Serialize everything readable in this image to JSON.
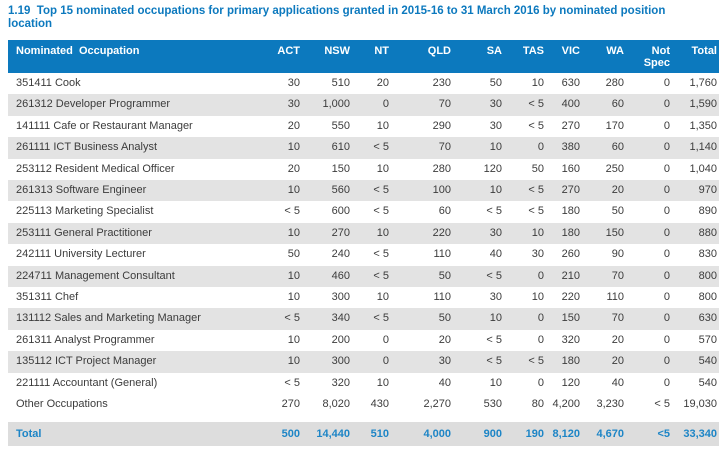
{
  "title": "1.19  Top 15 nominated occupations for primary applications granted in 2015-16 to 31 March 2016 by nominated position location",
  "table": {
    "columns": [
      "Nominated  Occupation",
      "ACT",
      "NSW",
      "NT",
      "QLD",
      "SA",
      "TAS",
      "VIC",
      "WA",
      "Not Spec",
      "Total"
    ],
    "rows": [
      [
        "351411 Cook",
        "30",
        "510",
        "20",
        "230",
        "50",
        "10",
        "630",
        "280",
        "0",
        "1,760"
      ],
      [
        "261312 Developer Programmer",
        "30",
        "1,000",
        "0",
        "70",
        "30",
        "< 5",
        "400",
        "60",
        "0",
        "1,590"
      ],
      [
        "141111 Cafe or Restaurant Manager",
        "20",
        "550",
        "10",
        "290",
        "30",
        "< 5",
        "270",
        "170",
        "0",
        "1,350"
      ],
      [
        "261111 ICT Business Analyst",
        "10",
        "610",
        "< 5",
        "70",
        "10",
        "0",
        "380",
        "60",
        "0",
        "1,140"
      ],
      [
        "253112 Resident Medical Officer",
        "20",
        "150",
        "10",
        "280",
        "120",
        "50",
        "160",
        "250",
        "0",
        "1,040"
      ],
      [
        "261313 Software Engineer",
        "10",
        "560",
        "< 5",
        "100",
        "10",
        "< 5",
        "270",
        "20",
        "0",
        "970"
      ],
      [
        "225113 Marketing Specialist",
        "< 5",
        "600",
        "< 5",
        "60",
        "< 5",
        "< 5",
        "180",
        "50",
        "0",
        "890"
      ],
      [
        "253111 General Practitioner",
        "10",
        "270",
        "10",
        "220",
        "30",
        "10",
        "180",
        "150",
        "0",
        "880"
      ],
      [
        "242111 University Lecturer",
        "50",
        "240",
        "< 5",
        "110",
        "40",
        "30",
        "260",
        "90",
        "0",
        "830"
      ],
      [
        "224711 Management Consultant",
        "10",
        "460",
        "< 5",
        "50",
        "< 5",
        "0",
        "210",
        "70",
        "0",
        "800"
      ],
      [
        "351311 Chef",
        "10",
        "300",
        "10",
        "110",
        "30",
        "10",
        "220",
        "110",
        "0",
        "800"
      ],
      [
        "131112 Sales and Marketing Manager",
        "< 5",
        "340",
        "< 5",
        "50",
        "10",
        "0",
        "150",
        "70",
        "0",
        "630"
      ],
      [
        "261311 Analyst Programmer",
        "10",
        "200",
        "0",
        "20",
        "< 5",
        "0",
        "320",
        "20",
        "0",
        "570"
      ],
      [
        "135112 ICT Project Manager",
        "10",
        "300",
        "0",
        "30",
        "< 5",
        "< 5",
        "180",
        "20",
        "0",
        "540"
      ],
      [
        "221111 Accountant (General)",
        "< 5",
        "320",
        "10",
        "40",
        "10",
        "0",
        "120",
        "40",
        "0",
        "540"
      ],
      [
        "Other Occupations",
        "270",
        "8,020",
        "430",
        "2,270",
        "530",
        "80",
        "4,200",
        "3,230",
        "< 5",
        "19,030"
      ]
    ],
    "total_row": [
      "Total",
      "500",
      "14,440",
      "510",
      "4,000",
      "900",
      "190",
      "8,120",
      "4,670",
      "<5",
      "33,340"
    ]
  },
  "colors": {
    "header_bg": "#0c79be",
    "title_text": "#0c79be",
    "total_text": "#1d85c6",
    "stripe": "#e3e3e3",
    "total_bg": "#dddddd",
    "body_text": "#3c3c3c"
  }
}
